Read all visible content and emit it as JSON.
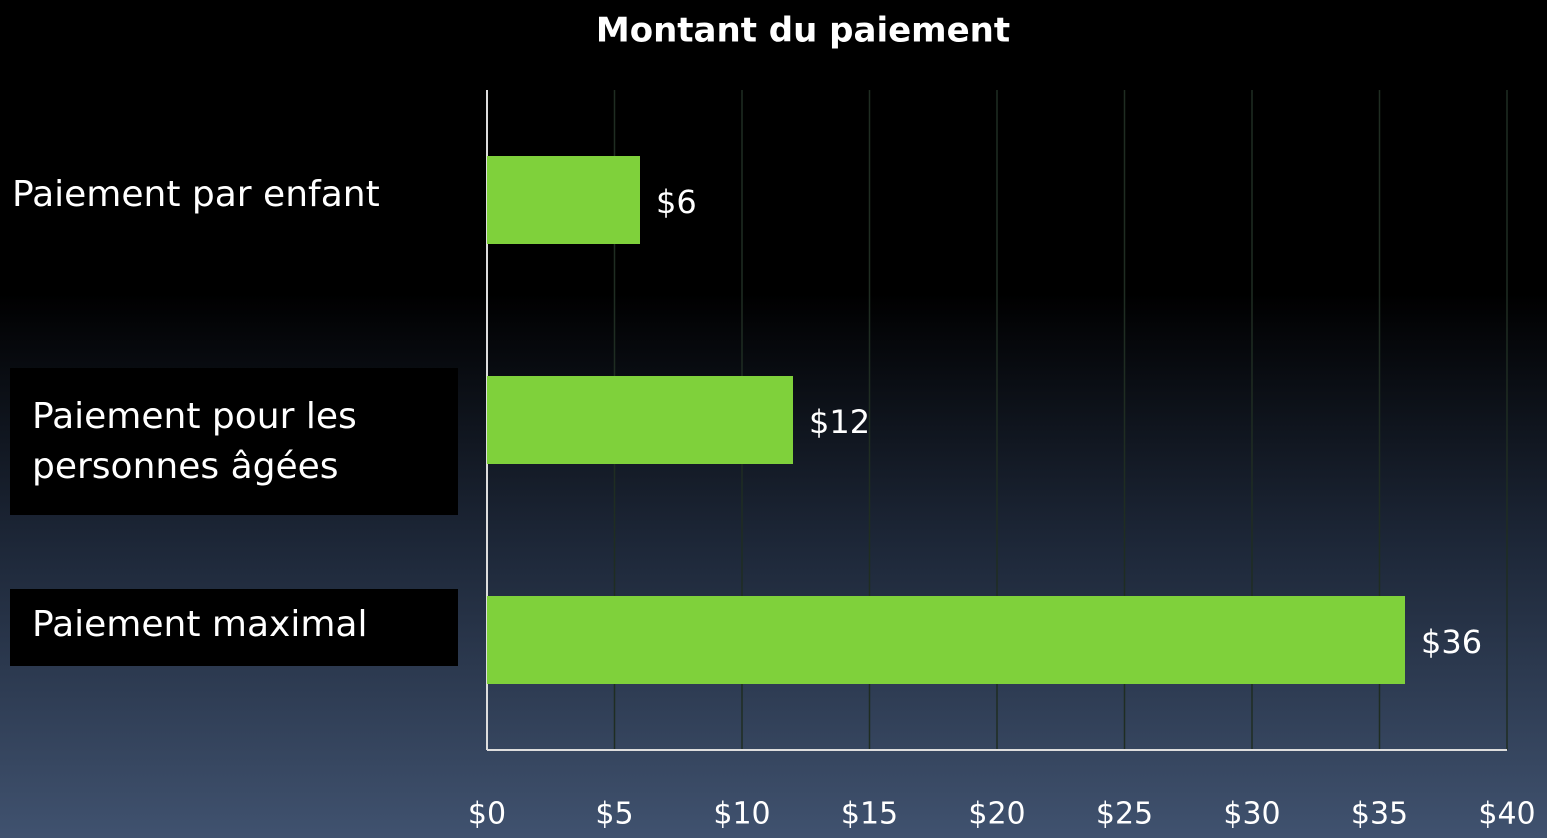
{
  "chart_data": {
    "type": "bar",
    "orientation": "horizontal",
    "title": "Montant du paiement",
    "categories": [
      "Paiement par enfant",
      "Paiement pour les personnes âgées",
      "Paiement maximal"
    ],
    "values": [
      6,
      12,
      36
    ],
    "value_labels": [
      "$6",
      "$12",
      "$36"
    ],
    "color": "#7fd13b",
    "xlim": [
      0,
      40
    ],
    "xticks": [
      {
        "value": 0,
        "label": "$0"
      },
      {
        "value": 5,
        "label": "$5"
      },
      {
        "value": 10,
        "label": "$10"
      },
      {
        "value": 15,
        "label": "$15"
      },
      {
        "value": 20,
        "label": "$20"
      },
      {
        "value": 25,
        "label": "$25"
      },
      {
        "value": 30,
        "label": "$30"
      },
      {
        "value": 35,
        "label": "$35"
      },
      {
        "value": 40,
        "label": "$40"
      }
    ],
    "grid": true
  }
}
